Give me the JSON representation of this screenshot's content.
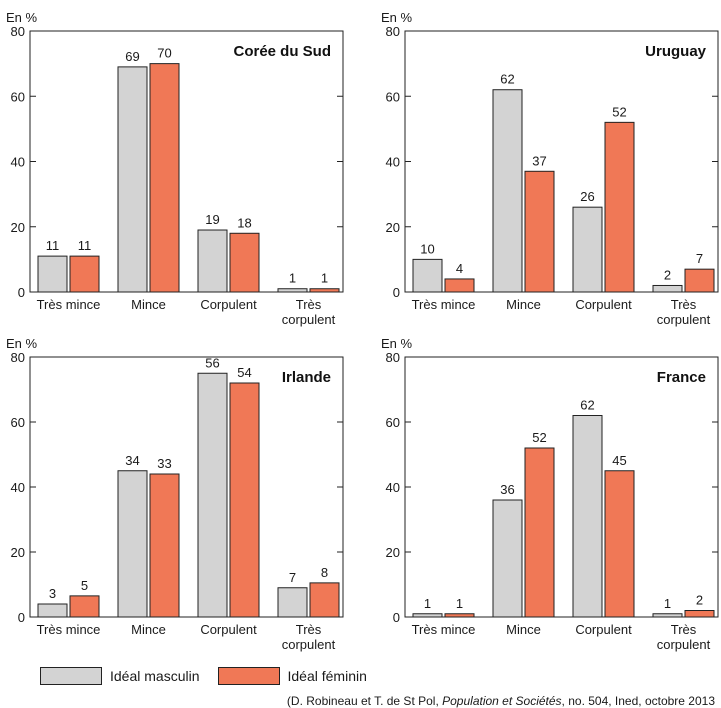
{
  "colors": {
    "masculin": "#d3d3d3",
    "feminin": "#f07856",
    "stroke": "#222222"
  },
  "legend": {
    "masculin_label": "Idéal masculin",
    "feminin_label": "Idéal féminin"
  },
  "source": {
    "prefix": "(D. Robineau et T. de St Pol, ",
    "journal": "Population et Sociétés",
    "suffix": ", no. 504, Ined, octobre 2013"
  },
  "chart_data": [
    {
      "type": "bar",
      "title": "Corée du Sud",
      "yunit": "En %",
      "ylim": [
        0,
        80
      ],
      "yticks": [
        0,
        20,
        40,
        60,
        80
      ],
      "categories": [
        "Très mince",
        "Mince",
        "Corpulent",
        "Très corpulent"
      ],
      "series": [
        {
          "name": "Idéal masculin",
          "values": [
            11,
            69,
            19,
            1
          ]
        },
        {
          "name": "Idéal féminin",
          "values": [
            11,
            70,
            18,
            1
          ]
        }
      ]
    },
    {
      "type": "bar",
      "title": "Uruguay",
      "yunit": "En %",
      "ylim": [
        0,
        80
      ],
      "yticks": [
        0,
        20,
        40,
        60,
        80
      ],
      "categories": [
        "Très mince",
        "Mince",
        "Corpulent",
        "Très corpulent"
      ],
      "series": [
        {
          "name": "Idéal masculin",
          "values": [
            10,
            62,
            26,
            2
          ]
        },
        {
          "name": "Idéal féminin",
          "values": [
            4,
            37,
            52,
            7
          ]
        }
      ]
    },
    {
      "type": "bar",
      "title": "Irlande",
      "yunit": "En %",
      "ylim": [
        0,
        80
      ],
      "yticks": [
        0,
        20,
        40,
        60,
        80
      ],
      "categories": [
        "Très mince",
        "Mince",
        "Corpulent",
        "Très corpulent"
      ],
      "series": [
        {
          "name": "Idéal masculin",
          "values": [
            3,
            34,
            56,
            7
          ],
          "bar_heights": [
            4,
            45,
            75,
            9
          ]
        },
        {
          "name": "Idéal féminin",
          "values": [
            5,
            33,
            54,
            8
          ],
          "bar_heights": [
            6.5,
            44,
            72,
            10.5
          ]
        }
      ]
    },
    {
      "type": "bar",
      "title": "France",
      "yunit": "En %",
      "ylim": [
        0,
        80
      ],
      "yticks": [
        0,
        20,
        40,
        60,
        80
      ],
      "categories": [
        "Très mince",
        "Mince",
        "Corpulent",
        "Très corpulent"
      ],
      "series": [
        {
          "name": "Idéal masculin",
          "values": [
            1,
            36,
            62,
            1
          ]
        },
        {
          "name": "Idéal féminin",
          "values": [
            1,
            52,
            45,
            2
          ]
        }
      ]
    }
  ]
}
